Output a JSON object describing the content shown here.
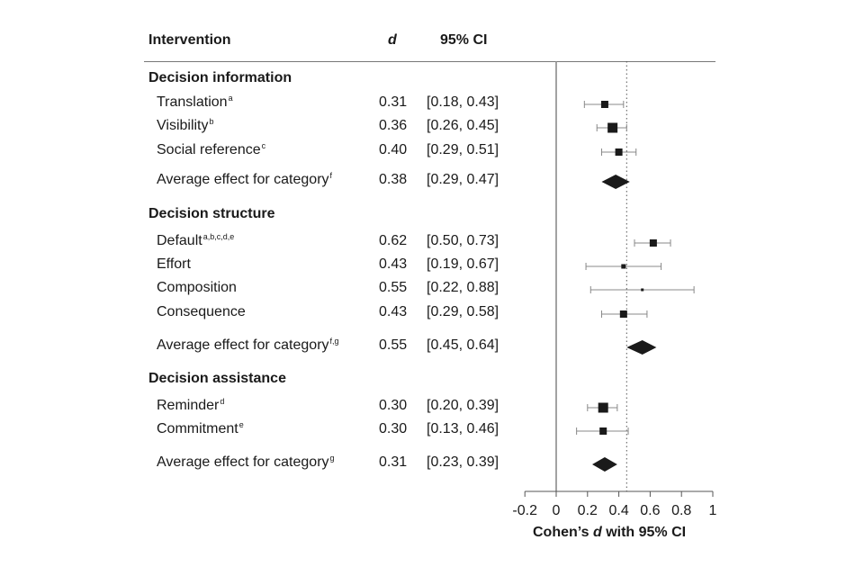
{
  "header": {
    "intervention": "Intervention",
    "d": "d",
    "ci": "95% CI"
  },
  "rows": [
    {
      "type": "category",
      "label": "Decision information"
    },
    {
      "type": "study",
      "label": "Translation",
      "sup": "a",
      "d": "0.31",
      "ci": "[0.18, 0.43]",
      "est": 0.31,
      "lo": 0.18,
      "hi": 0.43,
      "weight": "medium"
    },
    {
      "type": "study",
      "label": "Visibility",
      "sup": "b",
      "d": "0.36",
      "ci": "[0.26, 0.45]",
      "est": 0.36,
      "lo": 0.26,
      "hi": 0.45,
      "weight": "large"
    },
    {
      "type": "study",
      "label": "Social reference",
      "sup": "c",
      "d": "0.40",
      "ci": "[0.29, 0.51]",
      "est": 0.4,
      "lo": 0.29,
      "hi": 0.51,
      "weight": "medium"
    },
    {
      "type": "average",
      "label": "Average effect for category",
      "sup": "f",
      "d": "0.38",
      "ci": "[0.29, 0.47]",
      "est": 0.38,
      "lo": 0.29,
      "hi": 0.47
    },
    {
      "type": "category",
      "label": "Decision structure"
    },
    {
      "type": "study",
      "label": "Default",
      "sup": "a,b,c,d,e",
      "d": "0.62",
      "ci": "[0.50, 0.73]",
      "est": 0.62,
      "lo": 0.5,
      "hi": 0.73,
      "weight": "medium"
    },
    {
      "type": "study",
      "label": "Effort",
      "sup": "",
      "d": "0.43",
      "ci": "[0.19, 0.67]",
      "est": 0.43,
      "lo": 0.19,
      "hi": 0.67,
      "weight": "small"
    },
    {
      "type": "study",
      "label": "Composition",
      "sup": "",
      "d": "0.55",
      "ci": "[0.22, 0.88]",
      "est": 0.55,
      "lo": 0.22,
      "hi": 0.88,
      "weight": "tiny"
    },
    {
      "type": "study",
      "label": "Consequence",
      "sup": "",
      "d": "0.43",
      "ci": "[0.29, 0.58]",
      "est": 0.43,
      "lo": 0.29,
      "hi": 0.58,
      "weight": "medium"
    },
    {
      "type": "average",
      "label": "Average effect for category",
      "sup": "f,g",
      "d": "0.55",
      "ci": "[0.45, 0.64]",
      "est": 0.55,
      "lo": 0.45,
      "hi": 0.64
    },
    {
      "type": "category",
      "label": "Decision assistance"
    },
    {
      "type": "study",
      "label": "Reminder",
      "sup": "d",
      "d": "0.30",
      "ci": "[0.20, 0.39]",
      "est": 0.3,
      "lo": 0.2,
      "hi": 0.39,
      "weight": "large"
    },
    {
      "type": "study",
      "label": "Commitment",
      "sup": "e",
      "d": "0.30",
      "ci": "[0.13, 0.46]",
      "est": 0.3,
      "lo": 0.13,
      "hi": 0.46,
      "weight": "medium"
    },
    {
      "type": "average",
      "label": "Average effect for category",
      "sup": "g",
      "d": "0.31",
      "ci": "[0.23, 0.39]",
      "est": 0.31,
      "lo": 0.23,
      "hi": 0.39
    }
  ],
  "chart_data": {
    "type": "scatter",
    "subtype": "forest plot",
    "xlabel_prefix": "Cohen’s ",
    "xlabel_italic": "d",
    "xlabel_suffix": " with 95% CI",
    "xlim": [
      -0.2,
      1
    ],
    "xticks": [
      -0.2,
      0,
      0.2,
      0.4,
      0.6,
      0.8,
      1
    ],
    "xtick_labels": [
      "-0.2",
      "0",
      "0.2",
      "0.4",
      "0.6",
      "0.8",
      "1"
    ],
    "zero_line": 0,
    "overall_reference_line": 0.45,
    "grid": false
  },
  "colors": {
    "marker": "#1a1a1a",
    "whisker": "#888888",
    "axis": "#555555",
    "reference": "#555555"
  }
}
